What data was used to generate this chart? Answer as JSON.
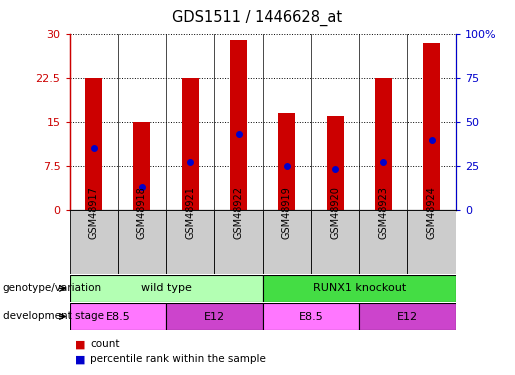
{
  "title": "GDS1511 / 1446628_at",
  "samples": [
    "GSM48917",
    "GSM48918",
    "GSM48921",
    "GSM48922",
    "GSM48919",
    "GSM48920",
    "GSM48923",
    "GSM48924"
  ],
  "counts": [
    22.5,
    15.0,
    22.5,
    29.0,
    16.5,
    16.0,
    22.5,
    28.5
  ],
  "percentile_ranks": [
    35,
    13,
    27,
    43,
    25,
    23,
    27,
    40
  ],
  "ylim_left": [
    0,
    30
  ],
  "ylim_right": [
    0,
    100
  ],
  "yticks_left": [
    0,
    7.5,
    15,
    22.5,
    30
  ],
  "yticks_right": [
    0,
    25,
    50,
    75,
    100
  ],
  "ytick_labels_left": [
    "0",
    "7.5",
    "15",
    "22.5",
    "30"
  ],
  "ytick_labels_right": [
    "0",
    "25",
    "50",
    "75",
    "100%"
  ],
  "bar_color": "#cc0000",
  "dot_color": "#0000cc",
  "bg_color": "#ffffff",
  "plot_bg": "#ffffff",
  "sample_box_color": "#cccccc",
  "genotype_groups": [
    {
      "label": "wild type",
      "start": 0,
      "end": 4,
      "color": "#b3ffb3"
    },
    {
      "label": "RUNX1 knockout",
      "start": 4,
      "end": 8,
      "color": "#44dd44"
    }
  ],
  "dev_stage_groups": [
    {
      "label": "E8.5",
      "start": 0,
      "end": 2,
      "color": "#ff77ff"
    },
    {
      "label": "E12",
      "start": 2,
      "end": 4,
      "color": "#cc44cc"
    },
    {
      "label": "E8.5",
      "start": 4,
      "end": 6,
      "color": "#ff77ff"
    },
    {
      "label": "E12",
      "start": 6,
      "end": 8,
      "color": "#cc44cc"
    }
  ],
  "legend_count_color": "#cc0000",
  "legend_pct_color": "#0000cc",
  "legend_count_label": "count",
  "legend_pct_label": "percentile rank within the sample",
  "left_axis_color": "#cc0000",
  "right_axis_color": "#0000cc",
  "bar_width": 0.35
}
